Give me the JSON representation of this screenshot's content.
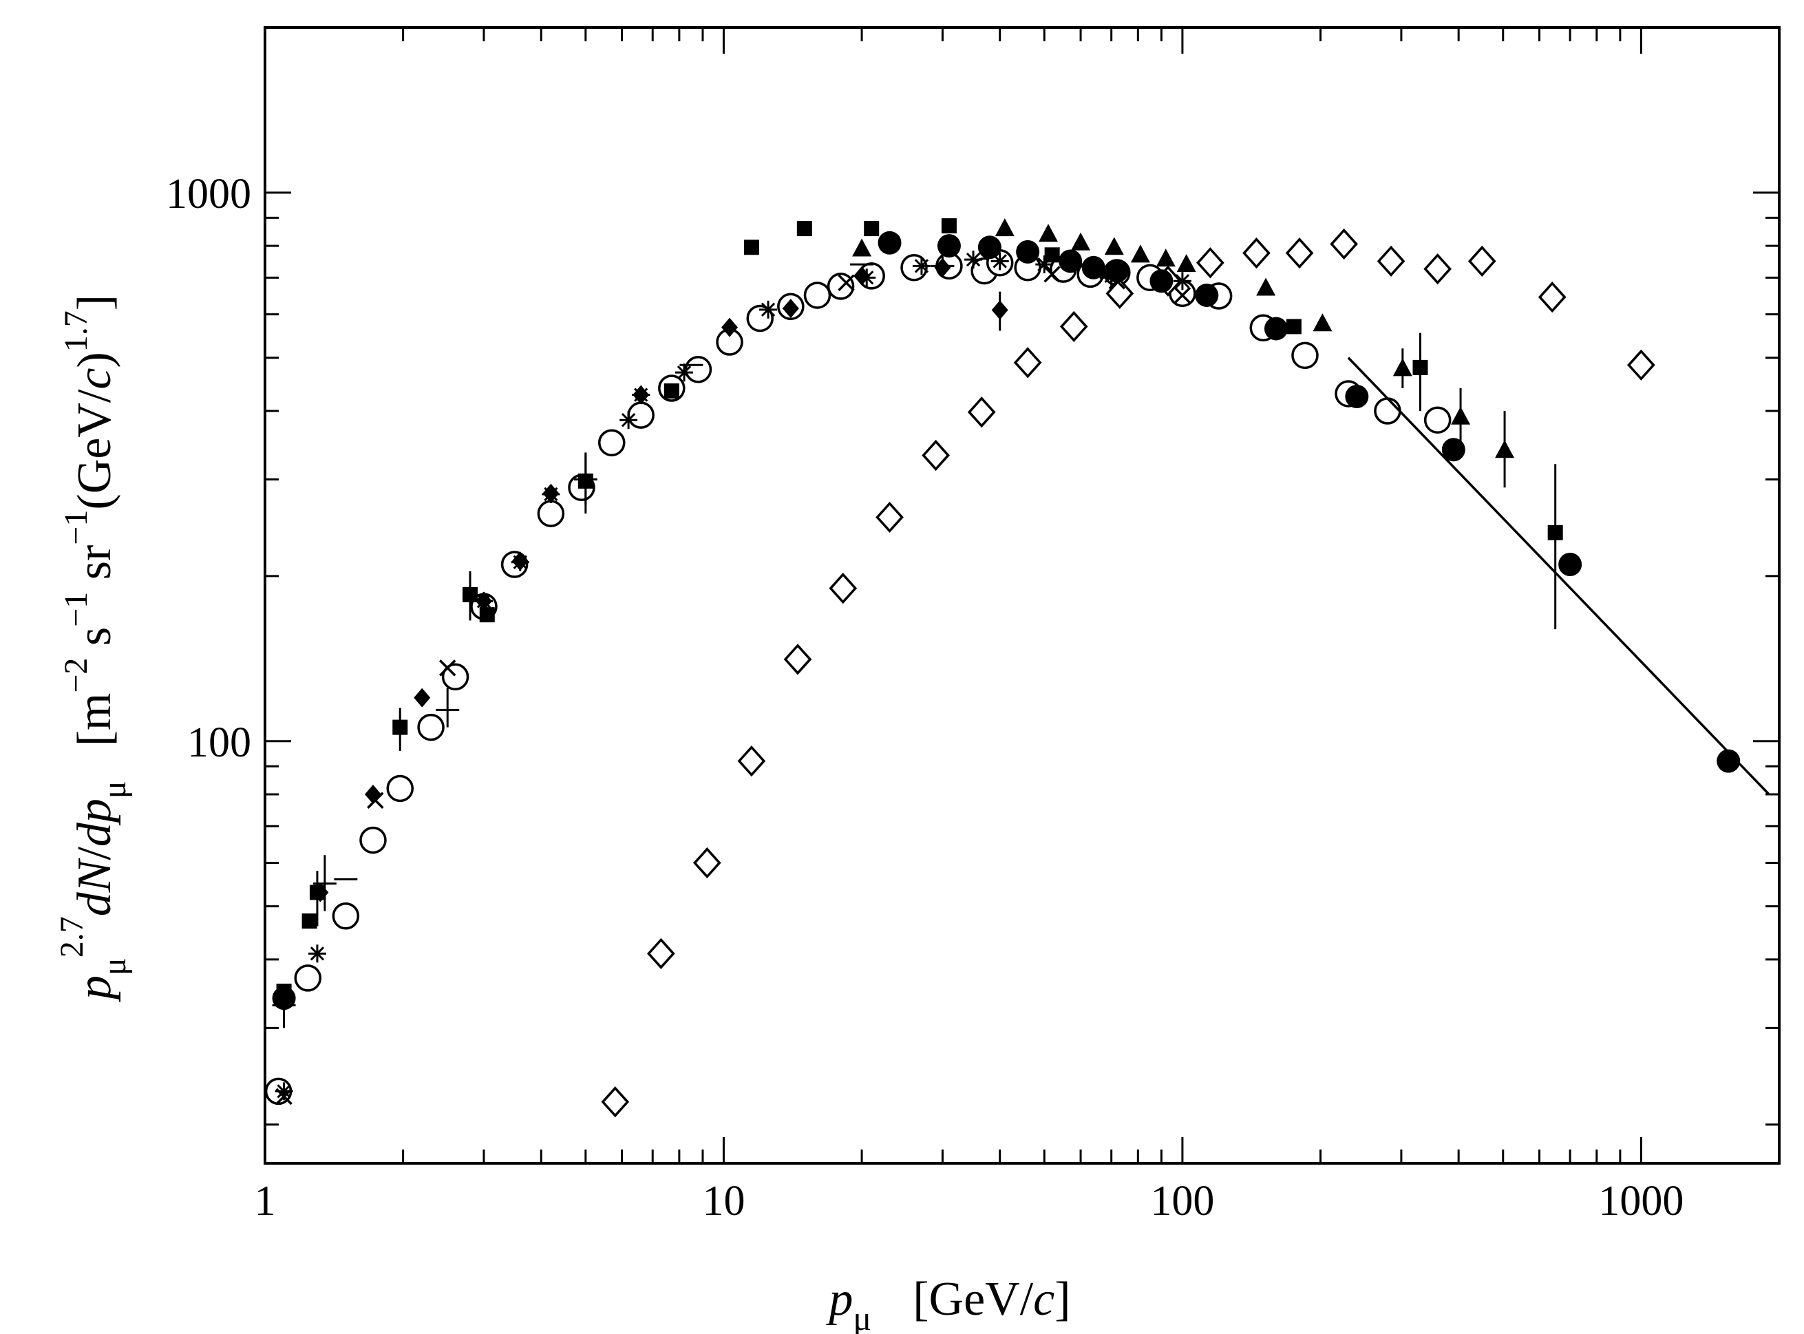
{
  "chart_data": {
    "type": "scatter",
    "title": "",
    "xscale": "log",
    "yscale": "log",
    "xlim": [
      1,
      2000
    ],
    "ylim": [
      17,
      2000
    ],
    "x_ticks": [
      1,
      10,
      100,
      1000
    ],
    "x_tick_labels": [
      "1",
      "10",
      "100",
      "1000"
    ],
    "y_ticks": [
      100,
      1000
    ],
    "y_tick_labels": [
      "100",
      "1000"
    ],
    "xlabel": {
      "italic": "p",
      "sub": "μ",
      "rest": "[GeV/",
      "rest_italic": "c",
      "rest_close": "]"
    },
    "ylabel": {
      "p": "p",
      "sub": "μ",
      "sup": "2.7",
      "dn": "dN",
      "slash": "/",
      "d": "d",
      "p2": "p",
      "sub2": "μ",
      "units_open": "[m",
      "sup_m": "−2",
      "s": " s",
      "sup_s": "−1",
      "sr": " sr",
      "sup_sr": "−1",
      "gev": "(GeV/",
      "c": "c",
      "close": ")",
      "sup_gev": "1.7",
      "end": "]"
    },
    "series": [
      {
        "name": "open circles",
        "marker": "open-circle",
        "points": [
          [
            1.07,
            23
          ],
          [
            1.24,
            37
          ],
          [
            1.5,
            48
          ],
          [
            1.72,
            66
          ],
          [
            1.97,
            82
          ],
          [
            2.3,
            106
          ],
          [
            2.6,
            131
          ],
          [
            3.0,
            176
          ],
          [
            3.5,
            210
          ],
          [
            4.2,
            260
          ],
          [
            4.9,
            290
          ],
          [
            5.7,
            350
          ],
          [
            6.6,
            393
          ],
          [
            7.7,
            440
          ],
          [
            8.8,
            476
          ],
          [
            10.3,
            534
          ],
          [
            12,
            590
          ],
          [
            14,
            620
          ],
          [
            16,
            650
          ],
          [
            18,
            675
          ],
          [
            21,
            705
          ],
          [
            26,
            730
          ],
          [
            31,
            735
          ],
          [
            37,
            720
          ],
          [
            40,
            745
          ],
          [
            46,
            730
          ],
          [
            55,
            725
          ],
          [
            63,
            710
          ],
          [
            72,
            715
          ],
          [
            85,
            700
          ],
          [
            100,
            655
          ],
          [
            120,
            648
          ],
          [
            150,
            567
          ],
          [
            185,
            505
          ],
          [
            230,
            430
          ],
          [
            280,
            400
          ],
          [
            360,
            385
          ]
        ]
      },
      {
        "name": "open diamonds",
        "marker": "open-diamond",
        "points": [
          [
            5.8,
            22
          ],
          [
            7.3,
            41
          ],
          [
            9.2,
            60
          ],
          [
            11.5,
            92
          ],
          [
            14.5,
            141
          ],
          [
            18.2,
            190
          ],
          [
            23,
            256
          ],
          [
            29,
            332
          ],
          [
            36.5,
            398
          ],
          [
            46,
            490
          ],
          [
            58,
            570
          ],
          [
            73,
            655
          ],
          [
            93,
            690
          ],
          [
            115,
            745
          ],
          [
            145,
            776
          ],
          [
            180,
            776
          ],
          [
            225,
            806
          ],
          [
            285,
            750
          ],
          [
            360,
            726
          ],
          [
            450,
            750
          ],
          [
            640,
            645
          ],
          [
            1000,
            485
          ]
        ]
      },
      {
        "name": "filled circles",
        "marker": "filled-circle",
        "points": [
          [
            1.1,
            34
          ],
          [
            23,
            810
          ],
          [
            31,
            800
          ],
          [
            38,
            795
          ],
          [
            46,
            780
          ],
          [
            57,
            750
          ],
          [
            64,
            730
          ],
          [
            72,
            720
          ],
          [
            90,
            690
          ],
          [
            113,
            650
          ],
          [
            160,
            565
          ],
          [
            240,
            425
          ],
          [
            390,
            340
          ],
          [
            700,
            210
          ],
          [
            1550,
            92
          ]
        ]
      },
      {
        "name": "filled squares",
        "marker": "filled-square",
        "points": [
          [
            1.1,
            35
          ],
          [
            1.25,
            47
          ],
          [
            1.3,
            53
          ],
          [
            1.97,
            106
          ],
          [
            2.8,
            185
          ],
          [
            3.05,
            170
          ],
          [
            5.0,
            298
          ],
          [
            7.7,
            435
          ],
          [
            11.5,
            795
          ],
          [
            15,
            860
          ],
          [
            21,
            860
          ],
          [
            31,
            870
          ],
          [
            52,
            770
          ],
          [
            175,
            570
          ],
          [
            330,
            480
          ],
          [
            650,
            240
          ]
        ],
        "error_bars": [
          [
            1.3,
            46,
            58
          ],
          [
            1.97,
            96,
            115
          ],
          [
            2.8,
            166,
            204
          ],
          [
            5.0,
            260,
            336
          ],
          [
            330,
            400,
            555
          ],
          [
            650,
            160,
            320
          ]
        ]
      },
      {
        "name": "filled triangles",
        "marker": "filled-triangle",
        "points": [
          [
            20,
            790
          ],
          [
            41,
            860
          ],
          [
            51,
            840
          ],
          [
            60,
            810
          ],
          [
            71,
            795
          ],
          [
            81,
            770
          ],
          [
            92,
            757
          ],
          [
            102,
            740
          ],
          [
            152,
            670
          ],
          [
            202,
            577
          ],
          [
            302,
            478
          ],
          [
            404,
            390
          ],
          [
            504,
            339
          ]
        ],
        "error_bars": [
          [
            302,
            440,
            520
          ],
          [
            404,
            350,
            440
          ],
          [
            504,
            290,
            400
          ]
        ]
      },
      {
        "name": "filled diamonds",
        "marker": "filled-diamond",
        "points": [
          [
            1.1,
            34
          ],
          [
            1.32,
            53
          ],
          [
            1.72,
            80
          ],
          [
            2.2,
            120
          ],
          [
            3.0,
            180
          ],
          [
            3.6,
            213
          ],
          [
            4.2,
            283
          ],
          [
            6.6,
            428
          ],
          [
            10.3,
            568
          ],
          [
            14,
            615
          ],
          [
            20,
            705
          ],
          [
            30,
            730
          ],
          [
            40,
            611
          ]
        ],
        "error_bars": [
          [
            40,
            560,
            660
          ]
        ]
      },
      {
        "name": "asterisks",
        "marker": "asterisk",
        "points": [
          [
            1.1,
            23
          ],
          [
            1.3,
            41
          ],
          [
            3.0,
            180
          ],
          [
            3.6,
            212
          ],
          [
            4.2,
            282
          ],
          [
            6.2,
            385
          ],
          [
            6.6,
            428
          ],
          [
            8.2,
            470
          ],
          [
            12.5,
            612
          ],
          [
            20.5,
            700
          ],
          [
            27,
            735
          ],
          [
            35,
            755
          ],
          [
            40,
            750
          ],
          [
            50,
            740
          ],
          [
            70,
            705
          ],
          [
            100,
            690
          ]
        ]
      },
      {
        "name": "crosses",
        "marker": "x",
        "points": [
          [
            1.1,
            22.5
          ],
          [
            1.74,
            78
          ],
          [
            2.5,
            136
          ],
          [
            18.5,
            685
          ],
          [
            52,
            710
          ],
          [
            72,
            690
          ],
          [
            100,
            650
          ]
        ]
      },
      {
        "name": "plus error points",
        "marker": "plus",
        "points": [
          [
            1.1,
            33
          ],
          [
            1.35,
            55
          ],
          [
            1.5,
            56
          ],
          [
            2.5,
            114
          ],
          [
            5.0,
            300
          ],
          [
            8.5,
            485
          ],
          [
            20,
            740
          ],
          [
            30,
            735
          ],
          [
            70,
            700
          ]
        ],
        "error_bars": [
          [
            1.1,
            30,
            36
          ],
          [
            1.35,
            49,
            62
          ],
          [
            2.5,
            106,
            125
          ],
          [
            5.0,
            270,
            335
          ],
          [
            30,
            710,
            765
          ],
          [
            70,
            670,
            725
          ]
        ]
      },
      {
        "name": "fit line",
        "marker": "line",
        "points": [
          [
            230,
            500
          ],
          [
            1900,
            80
          ]
        ]
      }
    ]
  }
}
